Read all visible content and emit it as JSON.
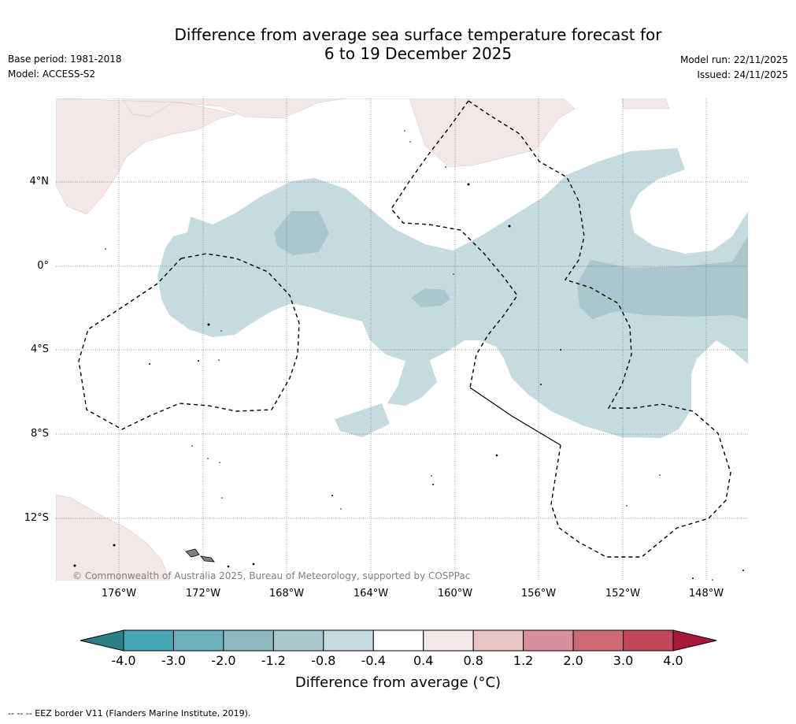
{
  "header": {
    "title_line1": "Difference from average sea surface temperature forecast for",
    "title_line2": "6 to 19 December 2025",
    "base_period": "Base period: 1981-2018",
    "model": "Model: ACCESS-S2",
    "model_run": "Model run: 22/11/2025",
    "issued": "Issued: 24/11/2025"
  },
  "map": {
    "lat_labels": [
      "4°N",
      "0°",
      "4°S",
      "8°S",
      "12°S"
    ],
    "lon_labels": [
      "176°W",
      "172°W",
      "168°W",
      "164°W",
      "160°W",
      "156°W",
      "152°W",
      "148°W"
    ],
    "copyright": "© Commonwealth of Australia 2025, Bureau of Meteorology, supported by COSPPac"
  },
  "colorbar": {
    "ticks": [
      "-4.0",
      "-3.0",
      "-2.0",
      "-1.2",
      "-0.8",
      "-0.4",
      "0.4",
      "0.8",
      "1.2",
      "2.0",
      "3.0",
      "4.0"
    ],
    "colors": [
      "#47a5b5",
      "#6cb0bd",
      "#8db9c1",
      "#a9c7cc",
      "#c6dbdf",
      "#ffffff",
      "#f5e7e8",
      "#e8c5c4",
      "#d69099",
      "#cc6a75",
      "#c0485a"
    ],
    "under_color": "#2c7f87",
    "over_color": "#a81a3a",
    "label": "Difference from average (°C)"
  },
  "legend": {
    "eez_note": "-- -- -- EEZ border V11 (Flanders Marine Institute, 2019)."
  }
}
